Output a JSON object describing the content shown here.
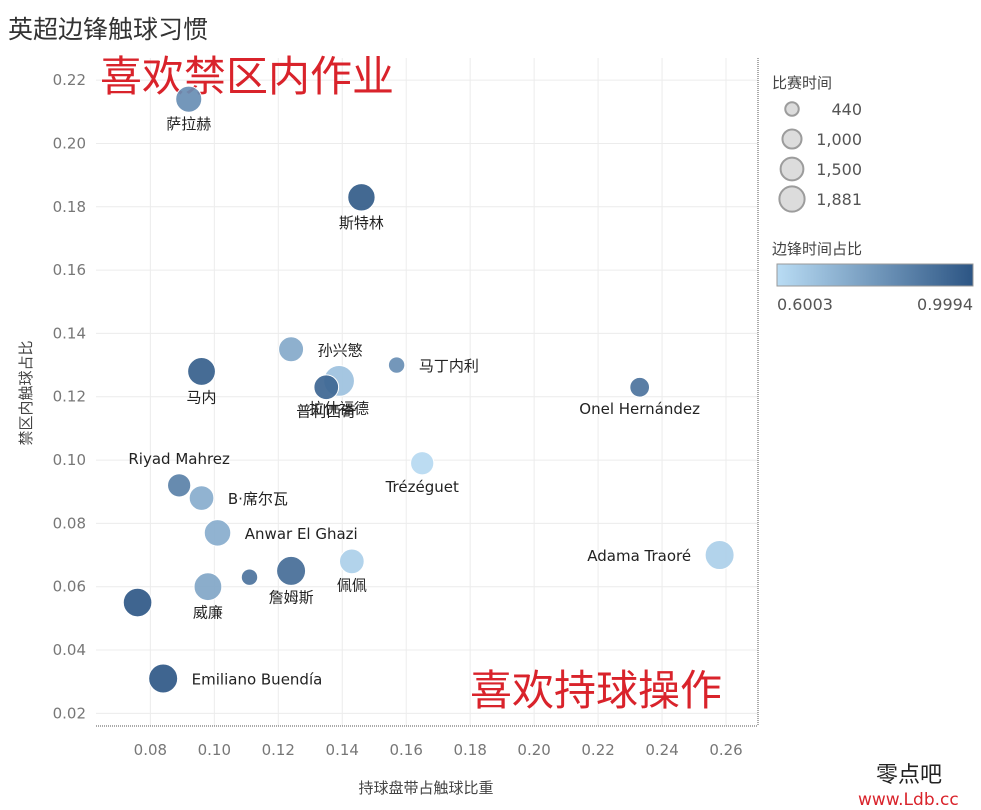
{
  "chart_data": {
    "type": "scatter",
    "title": "英超边锋触球习惯",
    "xlabel": "持球盘带占触球比重",
    "ylabel": "禁区内触球占比",
    "xlim": [
      0.063,
      0.27
    ],
    "ylim": [
      0.016,
      0.227
    ],
    "x_ticks": [
      "0.08",
      "0.10",
      "0.12",
      "0.14",
      "0.16",
      "0.18",
      "0.20",
      "0.22",
      "0.24",
      "0.26"
    ],
    "y_ticks": [
      "0.02",
      "0.04",
      "0.06",
      "0.08",
      "0.10",
      "0.12",
      "0.14",
      "0.16",
      "0.18",
      "0.20",
      "0.22"
    ],
    "grid": true,
    "size_legend": {
      "title": "比赛时间",
      "entries": [
        {
          "label": "440",
          "value": 440
        },
        {
          "label": "1,000",
          "value": 1000
        },
        {
          "label": "1,500",
          "value": 1500
        },
        {
          "label": "1,881",
          "value": 1881
        }
      ]
    },
    "color_legend": {
      "title": "边锋时间占比",
      "min_label": "0.6003",
      "max_label": "0.9994",
      "min": 0.6003,
      "max": 0.9994,
      "low_color": "#b9dcf4",
      "high_color": "#2c5584"
    },
    "points": [
      {
        "name": "萨拉赫",
        "x": 0.092,
        "y": 0.214,
        "minutes": 1300,
        "ratio": 0.83,
        "label_pos": "below"
      },
      {
        "name": "斯特林",
        "x": 0.146,
        "y": 0.183,
        "minutes": 1450,
        "ratio": 0.98,
        "label_pos": "below"
      },
      {
        "name": "孙兴慜",
        "x": 0.124,
        "y": 0.135,
        "minutes": 1180,
        "ratio": 0.75,
        "label_pos": "right"
      },
      {
        "name": "马丁内利",
        "x": 0.157,
        "y": 0.13,
        "minutes": 440,
        "ratio": 0.83,
        "label_pos": "right"
      },
      {
        "name": "马内",
        "x": 0.096,
        "y": 0.128,
        "minutes": 1500,
        "ratio": 0.97,
        "label_pos": "below"
      },
      {
        "name": "普利西奇",
        "x": 0.135,
        "y": 0.123,
        "minutes": 1150,
        "ratio": 0.95,
        "label_pos": "below"
      },
      {
        "name": "拉什福德",
        "x": 0.139,
        "y": 0.125,
        "minutes": 1881,
        "ratio": 0.68,
        "label_pos": "below"
      },
      {
        "name": "Onel Hernández",
        "x": 0.233,
        "y": 0.123,
        "minutes": 680,
        "ratio": 0.91,
        "label_pos": "below"
      },
      {
        "name": "Riyad Mahrez",
        "x": 0.089,
        "y": 0.092,
        "minutes": 1000,
        "ratio": 0.87,
        "label_pos": "above"
      },
      {
        "name": "Trézéguet",
        "x": 0.165,
        "y": 0.099,
        "minutes": 1000,
        "ratio": 0.61,
        "label_pos": "below"
      },
      {
        "name": "B·席尔瓦",
        "x": 0.096,
        "y": 0.088,
        "minutes": 1150,
        "ratio": 0.74,
        "label_pos": "right"
      },
      {
        "name": "Anwar El Ghazi",
        "x": 0.101,
        "y": 0.077,
        "minutes": 1350,
        "ratio": 0.74,
        "label_pos": "right"
      },
      {
        "name": "Adama Traoré",
        "x": 0.258,
        "y": 0.07,
        "minutes": 1650,
        "ratio": 0.64,
        "label_pos": "left"
      },
      {
        "name": "佩佩",
        "x": 0.143,
        "y": 0.068,
        "minutes": 1150,
        "ratio": 0.64,
        "label_pos": "below"
      },
      {
        "name": "",
        "x": 0.111,
        "y": 0.063,
        "minutes": 440,
        "ratio": 0.91,
        "label_pos": "none"
      },
      {
        "name": "詹姆斯",
        "x": 0.124,
        "y": 0.065,
        "minutes": 1650,
        "ratio": 0.93,
        "label_pos": "below"
      },
      {
        "name": "威廉",
        "x": 0.098,
        "y": 0.06,
        "minutes": 1500,
        "ratio": 0.76,
        "label_pos": "below"
      },
      {
        "name": "",
        "x": 0.076,
        "y": 0.055,
        "minutes": 1600,
        "ratio": 0.99,
        "label_pos": "none"
      },
      {
        "name": "Emiliano Buendía",
        "x": 0.084,
        "y": 0.031,
        "minutes": 1650,
        "ratio": 0.99,
        "label_pos": "right"
      }
    ]
  },
  "annotations": {
    "top_left": "喜欢禁区内作业",
    "bottom_right": "喜欢持球操作"
  },
  "watermark": {
    "line1": "零点吧",
    "line2": "www.Ldb.cc"
  }
}
